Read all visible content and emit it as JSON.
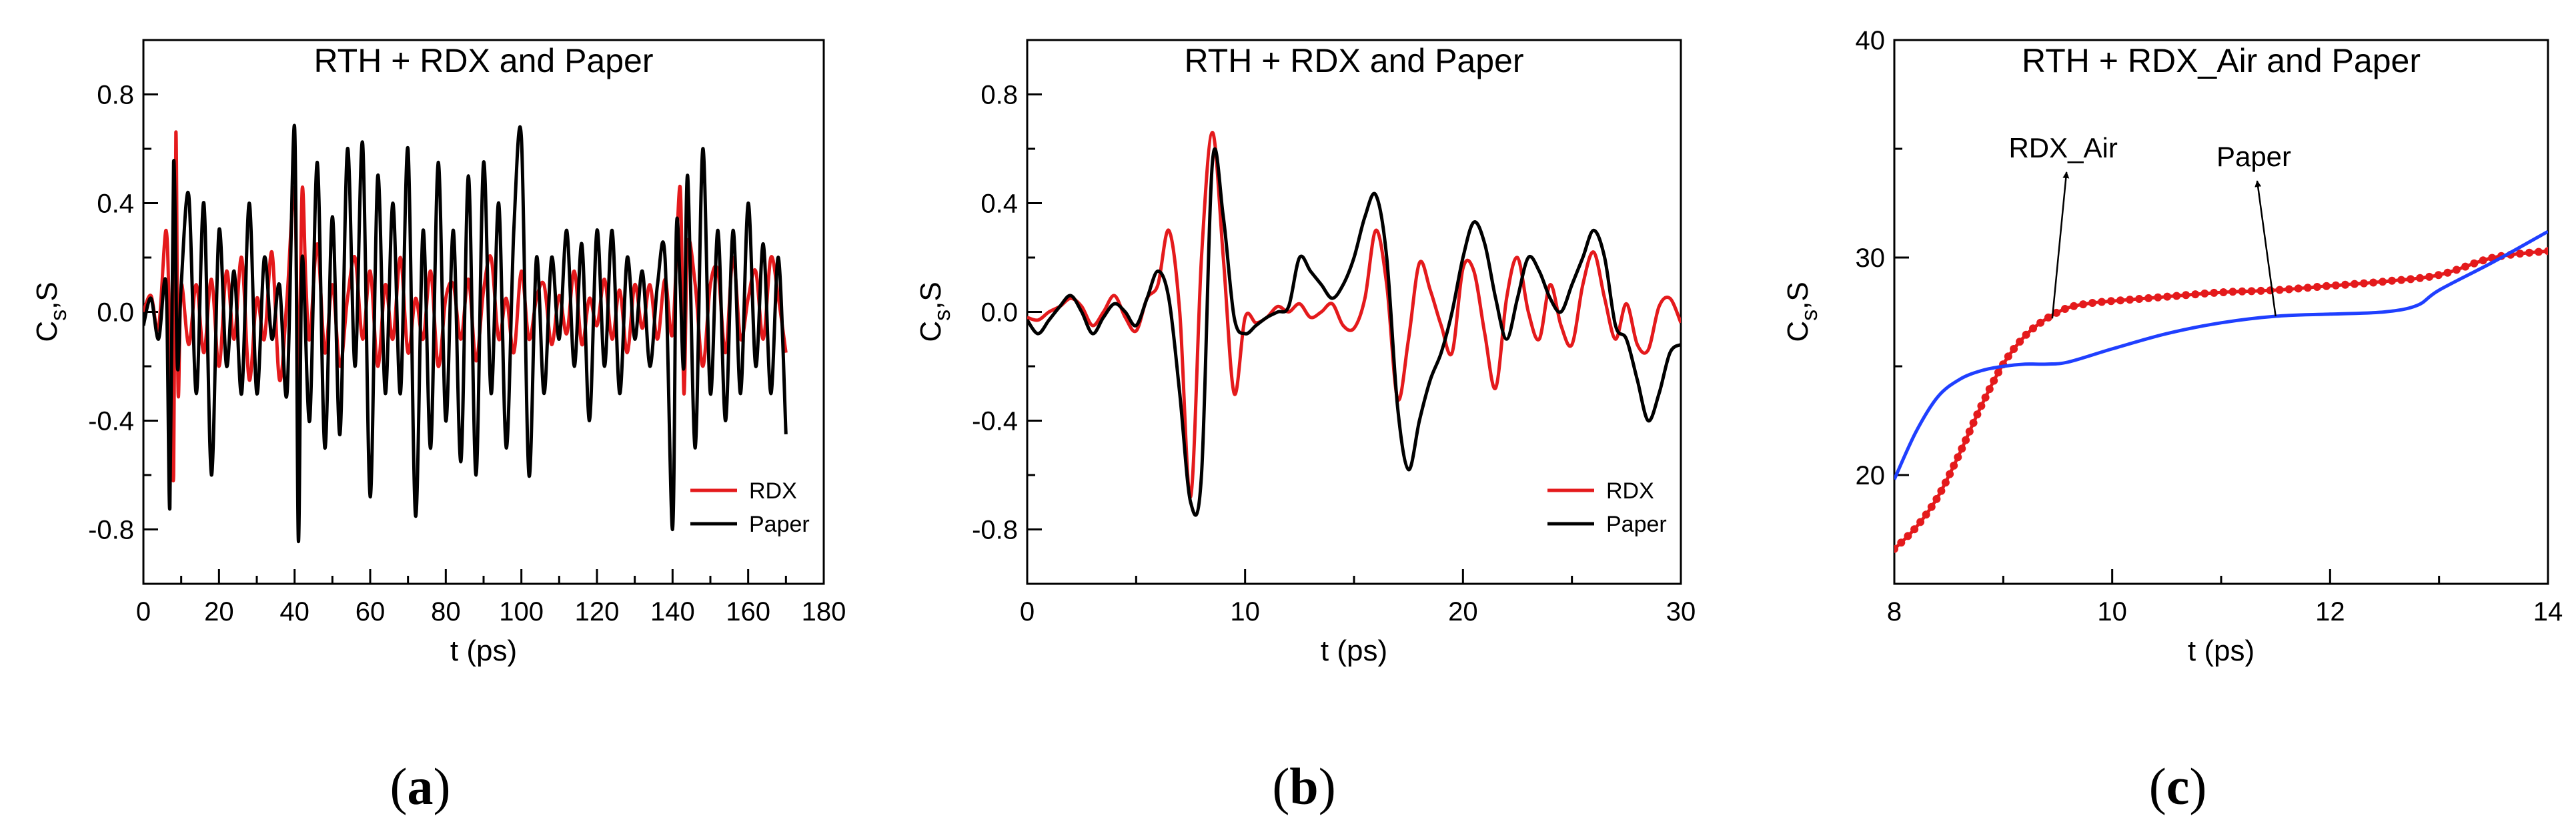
{
  "chart_data": [
    {
      "type": "line",
      "panel_label": "a",
      "title": "RTH  + RDX and Paper",
      "xlabel": "t (ps)",
      "ylabel_main": "C",
      "ylabel_sub": "s",
      "ylabel_rest": ",S",
      "xlim": [
        0,
        180
      ],
      "ylim": [
        -1.0,
        1.0
      ],
      "xticks": [
        0,
        20,
        40,
        60,
        80,
        100,
        120,
        140,
        160,
        180
      ],
      "xtick_labels": [
        "0",
        "20",
        "40",
        "60",
        "80",
        "100",
        "120",
        "140",
        "160",
        "180"
      ],
      "yticks": [
        -0.8,
        -0.4,
        0.0,
        0.4,
        0.8
      ],
      "ytick_labels": [
        "-0.8",
        "-0.4",
        "0.0",
        "0.4",
        "0.8"
      ],
      "legend": {
        "position": "bottom-right",
        "entries": [
          "RDX",
          "Paper"
        ]
      },
      "series": [
        {
          "name": "RDX",
          "color": "#e41a1c",
          "x": [
            0,
            2,
            4,
            6,
            7,
            8,
            8.6,
            9.2,
            10,
            12,
            14,
            16,
            18,
            20,
            22,
            24,
            26,
            28,
            30,
            32,
            34,
            36,
            38,
            40,
            41,
            42,
            43,
            44,
            46,
            48,
            50,
            52,
            54,
            56,
            58,
            60,
            62,
            64,
            66,
            68,
            70,
            72,
            74,
            76,
            78,
            80,
            82,
            84,
            86,
            88,
            90,
            92,
            94,
            96,
            98,
            100,
            102,
            104,
            106,
            108,
            110,
            112,
            114,
            116,
            118,
            120,
            122,
            124,
            126,
            128,
            130,
            132,
            134,
            136,
            138,
            140,
            142,
            143,
            144,
            146,
            148,
            150,
            152,
            154,
            156,
            158,
            160,
            162,
            164,
            166,
            168,
            170
          ],
          "y": [
            0,
            0.06,
            -0.06,
            0.3,
            -0.1,
            -0.6,
            0.66,
            -0.3,
            0.1,
            -0.12,
            0.1,
            -0.15,
            0.12,
            -0.2,
            0.15,
            -0.1,
            0.2,
            -0.25,
            0.05,
            -0.1,
            0.22,
            -0.25,
            0.05,
            0.45,
            -0.3,
            0.45,
            0.1,
            -0.1,
            0.25,
            -0.15,
            0.1,
            -0.2,
            0.05,
            0.2,
            -0.1,
            0.15,
            -0.2,
            0.1,
            -0.1,
            0.2,
            -0.15,
            0.05,
            -0.1,
            0.15,
            -0.2,
            0.05,
            0.1,
            -0.1,
            0.12,
            -0.18,
            0.08,
            0.2,
            -0.1,
            0.05,
            -0.15,
            0.15,
            -0.1,
            0.05,
            0.1,
            -0.12,
            0.06,
            -0.08,
            0.15,
            -0.12,
            0.05,
            -0.05,
            0.12,
            -0.1,
            0.08,
            -0.15,
            0.1,
            -0.06,
            0.1,
            -0.1,
            0.12,
            -0.08,
            0.46,
            -0.3,
            0.25,
            0.1,
            -0.2,
            0.1,
            0.15,
            -0.15,
            0.2,
            -0.1,
            0.05,
            0.15,
            -0.1,
            0.2,
            0.05,
            -0.15
          ]
        },
        {
          "name": "Paper",
          "color": "#000000",
          "x": [
            0,
            2,
            4,
            6,
            7,
            8,
            9,
            10,
            12,
            14,
            16,
            18,
            20,
            22,
            24,
            26,
            28,
            30,
            32,
            34,
            36,
            38,
            40,
            41,
            42,
            44,
            46,
            48,
            50,
            52,
            54,
            56,
            58,
            60,
            62,
            64,
            66,
            68,
            70,
            72,
            74,
            76,
            78,
            80,
            82,
            84,
            86,
            88,
            90,
            92,
            94,
            96,
            98,
            100,
            102,
            104,
            106,
            108,
            110,
            112,
            114,
            116,
            118,
            120,
            122,
            124,
            126,
            128,
            130,
            132,
            134,
            136,
            138,
            140,
            141,
            142,
            143,
            144,
            146,
            148,
            150,
            152,
            154,
            156,
            158,
            160,
            162,
            164,
            166,
            168,
            170
          ],
          "y": [
            -0.05,
            0.05,
            -0.1,
            0.1,
            -0.72,
            0.55,
            -0.2,
            0.1,
            0.43,
            -0.3,
            0.4,
            -0.6,
            0.3,
            -0.2,
            0.15,
            -0.3,
            0.4,
            -0.3,
            0.2,
            -0.1,
            0.1,
            -0.3,
            0.68,
            -0.84,
            0.2,
            -0.4,
            0.55,
            -0.5,
            0.35,
            -0.45,
            0.6,
            -0.2,
            0.62,
            -0.68,
            0.5,
            -0.3,
            0.4,
            -0.3,
            0.6,
            -0.75,
            0.3,
            -0.5,
            0.55,
            -0.4,
            0.3,
            -0.55,
            0.5,
            -0.6,
            0.55,
            -0.3,
            0.4,
            -0.5,
            0.3,
            0.64,
            -0.6,
            0.2,
            -0.3,
            0.2,
            -0.1,
            0.3,
            -0.2,
            0.25,
            -0.4,
            0.3,
            -0.2,
            0.3,
            -0.3,
            0.2,
            -0.1,
            0.15,
            -0.2,
            0.1,
            0.2,
            -0.8,
            0.3,
            0.1,
            -0.2,
            0.5,
            -0.5,
            0.6,
            -0.3,
            0.3,
            -0.4,
            0.3,
            -0.3,
            0.4,
            -0.2,
            0.25,
            -0.3,
            0.2,
            -0.45
          ]
        }
      ]
    },
    {
      "type": "line",
      "panel_label": "b",
      "title": "RTH  + RDX and Paper",
      "xlabel": "t (ps)",
      "ylabel_main": "C",
      "ylabel_sub": "s",
      "ylabel_rest": ",S",
      "xlim": [
        0,
        30
      ],
      "ylim": [
        -1.0,
        1.0
      ],
      "xticks": [
        0,
        10,
        20,
        30
      ],
      "xtick_labels": [
        "0",
        "10",
        "20",
        "30"
      ],
      "yticks": [
        -0.8,
        -0.4,
        0.0,
        0.4,
        0.8
      ],
      "ytick_labels": [
        "-0.8",
        "-0.4",
        "0.0",
        "0.4",
        "0.8"
      ],
      "legend": {
        "position": "bottom-right",
        "entries": [
          "RDX",
          "Paper"
        ]
      },
      "series": [
        {
          "name": "RDX",
          "color": "#e41a1c",
          "x": [
            0,
            0.5,
            1,
            1.5,
            2,
            2.5,
            3,
            3.5,
            4,
            4.5,
            5,
            5.5,
            6,
            6.5,
            7,
            7.5,
            8,
            8.5,
            9,
            9.5,
            10,
            10.5,
            11,
            11.5,
            12,
            12.5,
            13,
            13.5,
            14,
            14.5,
            15,
            15.5,
            16,
            16.5,
            17,
            17.5,
            18,
            18.5,
            19,
            19.5,
            20,
            20.5,
            21,
            21.5,
            22,
            22.5,
            23,
            23.5,
            24,
            24.5,
            25,
            25.5,
            26,
            26.5,
            27,
            27.5,
            28,
            28.5,
            29,
            29.5,
            30
          ],
          "y": [
            -0.02,
            -0.03,
            0.0,
            0.02,
            0.05,
            0.02,
            -0.05,
            0.0,
            0.06,
            -0.02,
            -0.07,
            0.05,
            0.1,
            0.3,
            0.0,
            -0.68,
            0.2,
            0.66,
            0.2,
            -0.3,
            -0.02,
            -0.04,
            -0.02,
            0.02,
            0.0,
            0.03,
            -0.02,
            0.0,
            0.03,
            -0.05,
            -0.06,
            0.05,
            0.3,
            0.1,
            -0.32,
            -0.1,
            0.18,
            0.08,
            -0.05,
            -0.15,
            0.16,
            0.15,
            -0.08,
            -0.28,
            0.05,
            0.2,
            0.0,
            -0.1,
            0.1,
            -0.05,
            -0.12,
            0.1,
            0.22,
            0.05,
            -0.1,
            0.03,
            -0.12,
            -0.14,
            0.02,
            0.05,
            -0.04
          ]
        },
        {
          "name": "Paper",
          "color": "#000000",
          "x": [
            0,
            0.5,
            1,
            1.5,
            2,
            2.5,
            3,
            3.5,
            4,
            4.5,
            5,
            5.5,
            6,
            6.5,
            7,
            7.5,
            8,
            8.5,
            9,
            9.5,
            10,
            10.5,
            11,
            11.5,
            12,
            12.5,
            13,
            13.5,
            14,
            14.5,
            15,
            15.5,
            16,
            16.5,
            17,
            17.5,
            18,
            18.5,
            19,
            19.5,
            20,
            20.5,
            21,
            21.5,
            22,
            22.5,
            23,
            23.5,
            24,
            24.5,
            25,
            25.5,
            26,
            26.5,
            27,
            27.5,
            28,
            28.5,
            29,
            29.5,
            30
          ],
          "y": [
            -0.03,
            -0.08,
            -0.03,
            0.02,
            0.06,
            0.0,
            -0.08,
            -0.02,
            0.03,
            0.0,
            -0.05,
            0.05,
            0.15,
            0.05,
            -0.3,
            -0.7,
            -0.6,
            0.55,
            0.35,
            -0.02,
            -0.08,
            -0.05,
            -0.02,
            0.0,
            0.02,
            0.2,
            0.15,
            0.1,
            0.05,
            0.1,
            0.2,
            0.35,
            0.43,
            0.2,
            -0.35,
            -0.58,
            -0.4,
            -0.25,
            -0.15,
            0.0,
            0.2,
            0.33,
            0.25,
            0.05,
            -0.1,
            0.05,
            0.2,
            0.15,
            0.05,
            0.0,
            0.1,
            0.2,
            0.3,
            0.2,
            -0.05,
            -0.1,
            -0.25,
            -0.4,
            -0.3,
            -0.15,
            -0.12
          ]
        }
      ]
    },
    {
      "type": "line",
      "panel_label": "c",
      "title": "RTH  + RDX_Air and Paper",
      "xlabel": "t (ps)",
      "ylabel_main": "C",
      "ylabel_sub": "s",
      "ylabel_rest": ",S",
      "xlim": [
        8,
        14
      ],
      "ylim": [
        15,
        40
      ],
      "xticks": [
        8,
        10,
        12,
        14
      ],
      "xtick_labels": [
        "8",
        "10",
        "12",
        "14"
      ],
      "yticks": [
        20,
        30,
        40
      ],
      "ytick_labels": [
        "20",
        "30",
        "40"
      ],
      "annotations": [
        {
          "text": "RDX_Air",
          "target_x": 9.45,
          "target_y": 27.2,
          "label_x": 9.55,
          "label_y": 34.6
        },
        {
          "text": "Paper",
          "target_x": 11.5,
          "target_y": 27.3,
          "label_x": 11.3,
          "label_y": 34.2
        }
      ],
      "series": [
        {
          "name": "RDX_Air",
          "color": "#e41a1c",
          "marker": "dot",
          "x": [
            8,
            8.2,
            8.4,
            8.6,
            8.8,
            9,
            9.2,
            9.4,
            9.6,
            9.8,
            10,
            10.5,
            11,
            11.5,
            12,
            12.5,
            13,
            13.5,
            14
          ],
          "y": [
            16.6,
            17.6,
            19.0,
            21.0,
            23.2,
            25.1,
            26.4,
            27.2,
            27.7,
            27.9,
            28.0,
            28.2,
            28.4,
            28.5,
            28.7,
            28.9,
            29.2,
            30.0,
            30.3
          ]
        },
        {
          "name": "Paper",
          "color": "#1f3fff",
          "x": [
            8,
            8.2,
            8.4,
            8.6,
            8.8,
            9,
            9.2,
            9.4,
            9.6,
            10,
            10.5,
            11,
            11.5,
            12,
            12.5,
            12.8,
            13,
            13.5,
            14
          ],
          "y": [
            19.8,
            22.0,
            23.6,
            24.4,
            24.8,
            25.0,
            25.1,
            25.1,
            25.2,
            25.8,
            26.5,
            27.0,
            27.3,
            27.4,
            27.5,
            27.8,
            28.5,
            29.8,
            31.2
          ]
        }
      ]
    }
  ]
}
